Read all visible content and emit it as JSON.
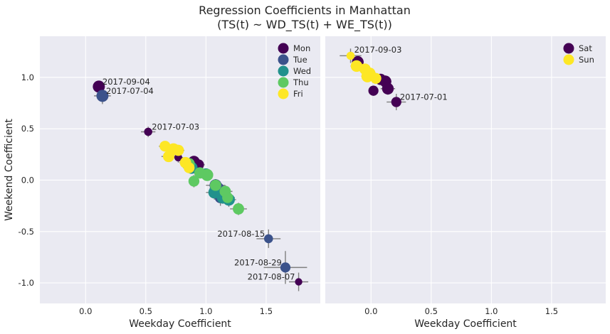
{
  "chart_data": {
    "type": "scatter",
    "title": [
      "Regression Coefficients in Manhattan",
      "(TS(t) ~ WD_TS(t) + WE_TS(t))"
    ],
    "ylabel": "Weekend Coefficient",
    "colors": {
      "Mon": "#440154",
      "Tue": "#3b528b",
      "Wed": "#21918c",
      "Thu": "#5ec962",
      "Fri": "#fde725",
      "Sat": "#440154",
      "Sun": "#fde725"
    },
    "grid": true,
    "panels": [
      {
        "xlabel": "Weekday Coefficient",
        "xlim": [
          -0.38,
          1.95
        ],
        "ylim": [
          -1.2,
          1.4
        ],
        "xticks": [
          "0.0",
          "0.5",
          "1.0",
          "1.5"
        ],
        "yticks": [
          "1.0",
          "0.5",
          "0.0",
          "-0.5",
          "-1.0"
        ],
        "legend": {
          "position": "top-right",
          "entries": [
            "Mon",
            "Tue",
            "Wed",
            "Thu",
            "Fri"
          ]
        },
        "series": [
          {
            "name": "Mon",
            "points": [
              {
                "x": 0.11,
                "y": 0.91,
                "ex": 0.0,
                "ey": 0.0,
                "size": 1.0
              },
              {
                "x": 0.52,
                "y": 0.47,
                "ex": 0.06,
                "ey": 0.05,
                "size": 0.5
              },
              {
                "x": 0.77,
                "y": 0.22,
                "ex": 0.04,
                "ey": 0.05,
                "size": 0.45
              },
              {
                "x": 0.9,
                "y": 0.18,
                "ex": 0.06,
                "ey": 0.05,
                "size": 0.95
              },
              {
                "x": 0.94,
                "y": 0.15,
                "ex": 0.05,
                "ey": 0.05,
                "size": 0.8
              },
              {
                "x": 1.77,
                "y": -0.99,
                "ex": 0.08,
                "ey": 0.09,
                "size": 0.4
              }
            ]
          },
          {
            "name": "Tue",
            "points": [
              {
                "x": 0.14,
                "y": 0.82,
                "ex": 0.07,
                "ey": 0.08,
                "size": 1.0
              },
              {
                "x": 1.08,
                "y": -0.05,
                "ex": 0.08,
                "ey": 0.06,
                "size": 1.0
              },
              {
                "x": 1.1,
                "y": -0.08,
                "ex": 0.07,
                "ey": 0.07,
                "size": 1.0
              },
              {
                "x": 1.12,
                "y": -0.17,
                "ex": 0.06,
                "ey": 0.08,
                "size": 0.9
              },
              {
                "x": 1.52,
                "y": -0.57,
                "ex": 0.1,
                "ey": 0.09,
                "size": 0.6
              },
              {
                "x": 1.66,
                "y": -0.85,
                "ex": 0.18,
                "ey": 0.16,
                "size": 0.75
              }
            ]
          },
          {
            "name": "Wed",
            "points": [
              {
                "x": 0.88,
                "y": 0.12,
                "ex": 0.06,
                "ey": 0.05,
                "size": 1.0
              },
              {
                "x": 1.0,
                "y": 0.06,
                "ex": 0.06,
                "ey": 0.05,
                "size": 0.9
              },
              {
                "x": 1.07,
                "y": -0.12,
                "ex": 0.07,
                "ey": 0.07,
                "size": 1.0
              },
              {
                "x": 1.14,
                "y": -0.17,
                "ex": 0.06,
                "ey": 0.06,
                "size": 1.0
              },
              {
                "x": 1.19,
                "y": -0.19,
                "ex": 0.06,
                "ey": 0.07,
                "size": 1.0
              }
            ]
          },
          {
            "name": "Thu",
            "points": [
              {
                "x": 0.86,
                "y": 0.16,
                "ex": 0.06,
                "ey": 0.05,
                "size": 0.9
              },
              {
                "x": 0.9,
                "y": -0.01,
                "ex": 0.04,
                "ey": 0.06,
                "size": 0.85
              },
              {
                "x": 0.95,
                "y": 0.07,
                "ex": 0.06,
                "ey": 0.05,
                "size": 0.9
              },
              {
                "x": 1.01,
                "y": 0.05,
                "ex": 0.05,
                "ey": 0.05,
                "size": 1.0
              },
              {
                "x": 1.08,
                "y": -0.05,
                "ex": 0.06,
                "ey": 0.06,
                "size": 0.9
              },
              {
                "x": 1.16,
                "y": -0.11,
                "ex": 0.06,
                "ey": 0.06,
                "size": 0.9
              },
              {
                "x": 1.18,
                "y": -0.17,
                "ex": 0.06,
                "ey": 0.07,
                "size": 0.85
              },
              {
                "x": 1.27,
                "y": -0.28,
                "ex": 0.07,
                "ey": 0.06,
                "size": 0.9
              }
            ]
          },
          {
            "name": "Fri",
            "points": [
              {
                "x": 0.66,
                "y": 0.33,
                "ex": 0.05,
                "ey": 0.05,
                "size": 0.85
              },
              {
                "x": 0.69,
                "y": 0.23,
                "ex": 0.06,
                "ey": 0.05,
                "size": 0.9
              },
              {
                "x": 0.73,
                "y": 0.3,
                "ex": 0.07,
                "ey": 0.05,
                "size": 1.0
              },
              {
                "x": 0.77,
                "y": 0.29,
                "ex": 0.05,
                "ey": 0.05,
                "size": 0.9
              },
              {
                "x": 0.83,
                "y": 0.17,
                "ex": 0.05,
                "ey": 0.05,
                "size": 0.9
              },
              {
                "x": 0.86,
                "y": 0.12,
                "ex": 0.05,
                "ey": 0.05,
                "size": 0.85
              }
            ]
          }
        ],
        "annotations": [
          {
            "text": "2017-09-04",
            "x": 0.14,
            "y": 0.93,
            "anchor": "start"
          },
          {
            "text": "2017-07-04",
            "x": 0.17,
            "y": 0.84,
            "anchor": "start"
          },
          {
            "text": "2017-07-03",
            "x": 0.55,
            "y": 0.49,
            "anchor": "start"
          },
          {
            "text": "2017-08-15",
            "x": 1.49,
            "y": -0.55,
            "anchor": "end"
          },
          {
            "text": "2017-08-29",
            "x": 1.63,
            "y": -0.83,
            "anchor": "end"
          },
          {
            "text": "2017-08-07",
            "x": 1.74,
            "y": -0.97,
            "anchor": "end"
          }
        ]
      },
      {
        "xlabel": "Weekday Coefficient",
        "xlim": [
          -0.38,
          1.95
        ],
        "ylim": [
          -1.2,
          1.4
        ],
        "xticks": [
          "0.0",
          "0.5",
          "1.0",
          "1.5"
        ],
        "yticks": [],
        "legend": {
          "position": "top-right",
          "entries": [
            "Sat",
            "Sun"
          ]
        },
        "series": [
          {
            "name": "Sat",
            "points": [
              {
                "x": -0.11,
                "y": 1.15,
                "ex": 0.05,
                "ey": 0.05,
                "size": 0.95
              },
              {
                "x": 0.02,
                "y": 0.87,
                "ex": 0.04,
                "ey": 0.05,
                "size": 0.75
              },
              {
                "x": 0.08,
                "y": 0.98,
                "ex": 0.05,
                "ey": 0.05,
                "size": 0.9
              },
              {
                "x": 0.12,
                "y": 0.96,
                "ex": 0.05,
                "ey": 0.06,
                "size": 0.95
              },
              {
                "x": 0.14,
                "y": 0.89,
                "ex": 0.06,
                "ey": 0.06,
                "size": 0.95
              },
              {
                "x": 0.21,
                "y": 0.76,
                "ex": 0.08,
                "ey": 0.08,
                "size": 0.75
              }
            ]
          },
          {
            "name": "Sun",
            "points": [
              {
                "x": -0.17,
                "y": 1.21,
                "ex": 0.09,
                "ey": 0.07,
                "size": 0.5
              },
              {
                "x": -0.12,
                "y": 1.11,
                "ex": 0.05,
                "ey": 0.05,
                "size": 0.95
              },
              {
                "x": -0.05,
                "y": 1.08,
                "ex": 0.05,
                "ey": 0.05,
                "size": 0.9
              },
              {
                "x": -0.03,
                "y": 1.01,
                "ex": 0.05,
                "ey": 0.05,
                "size": 1.0
              },
              {
                "x": -0.01,
                "y": 1.04,
                "ex": 0.05,
                "ey": 0.05,
                "size": 0.9
              },
              {
                "x": 0.04,
                "y": 0.99,
                "ex": 0.05,
                "ey": 0.05,
                "size": 0.85
              }
            ]
          }
        ],
        "annotations": [
          {
            "text": "2017-09-03",
            "x": -0.14,
            "y": 1.24,
            "anchor": "start"
          },
          {
            "text": "2017-07-01",
            "x": 0.24,
            "y": 0.78,
            "anchor": "start"
          }
        ]
      }
    ]
  }
}
